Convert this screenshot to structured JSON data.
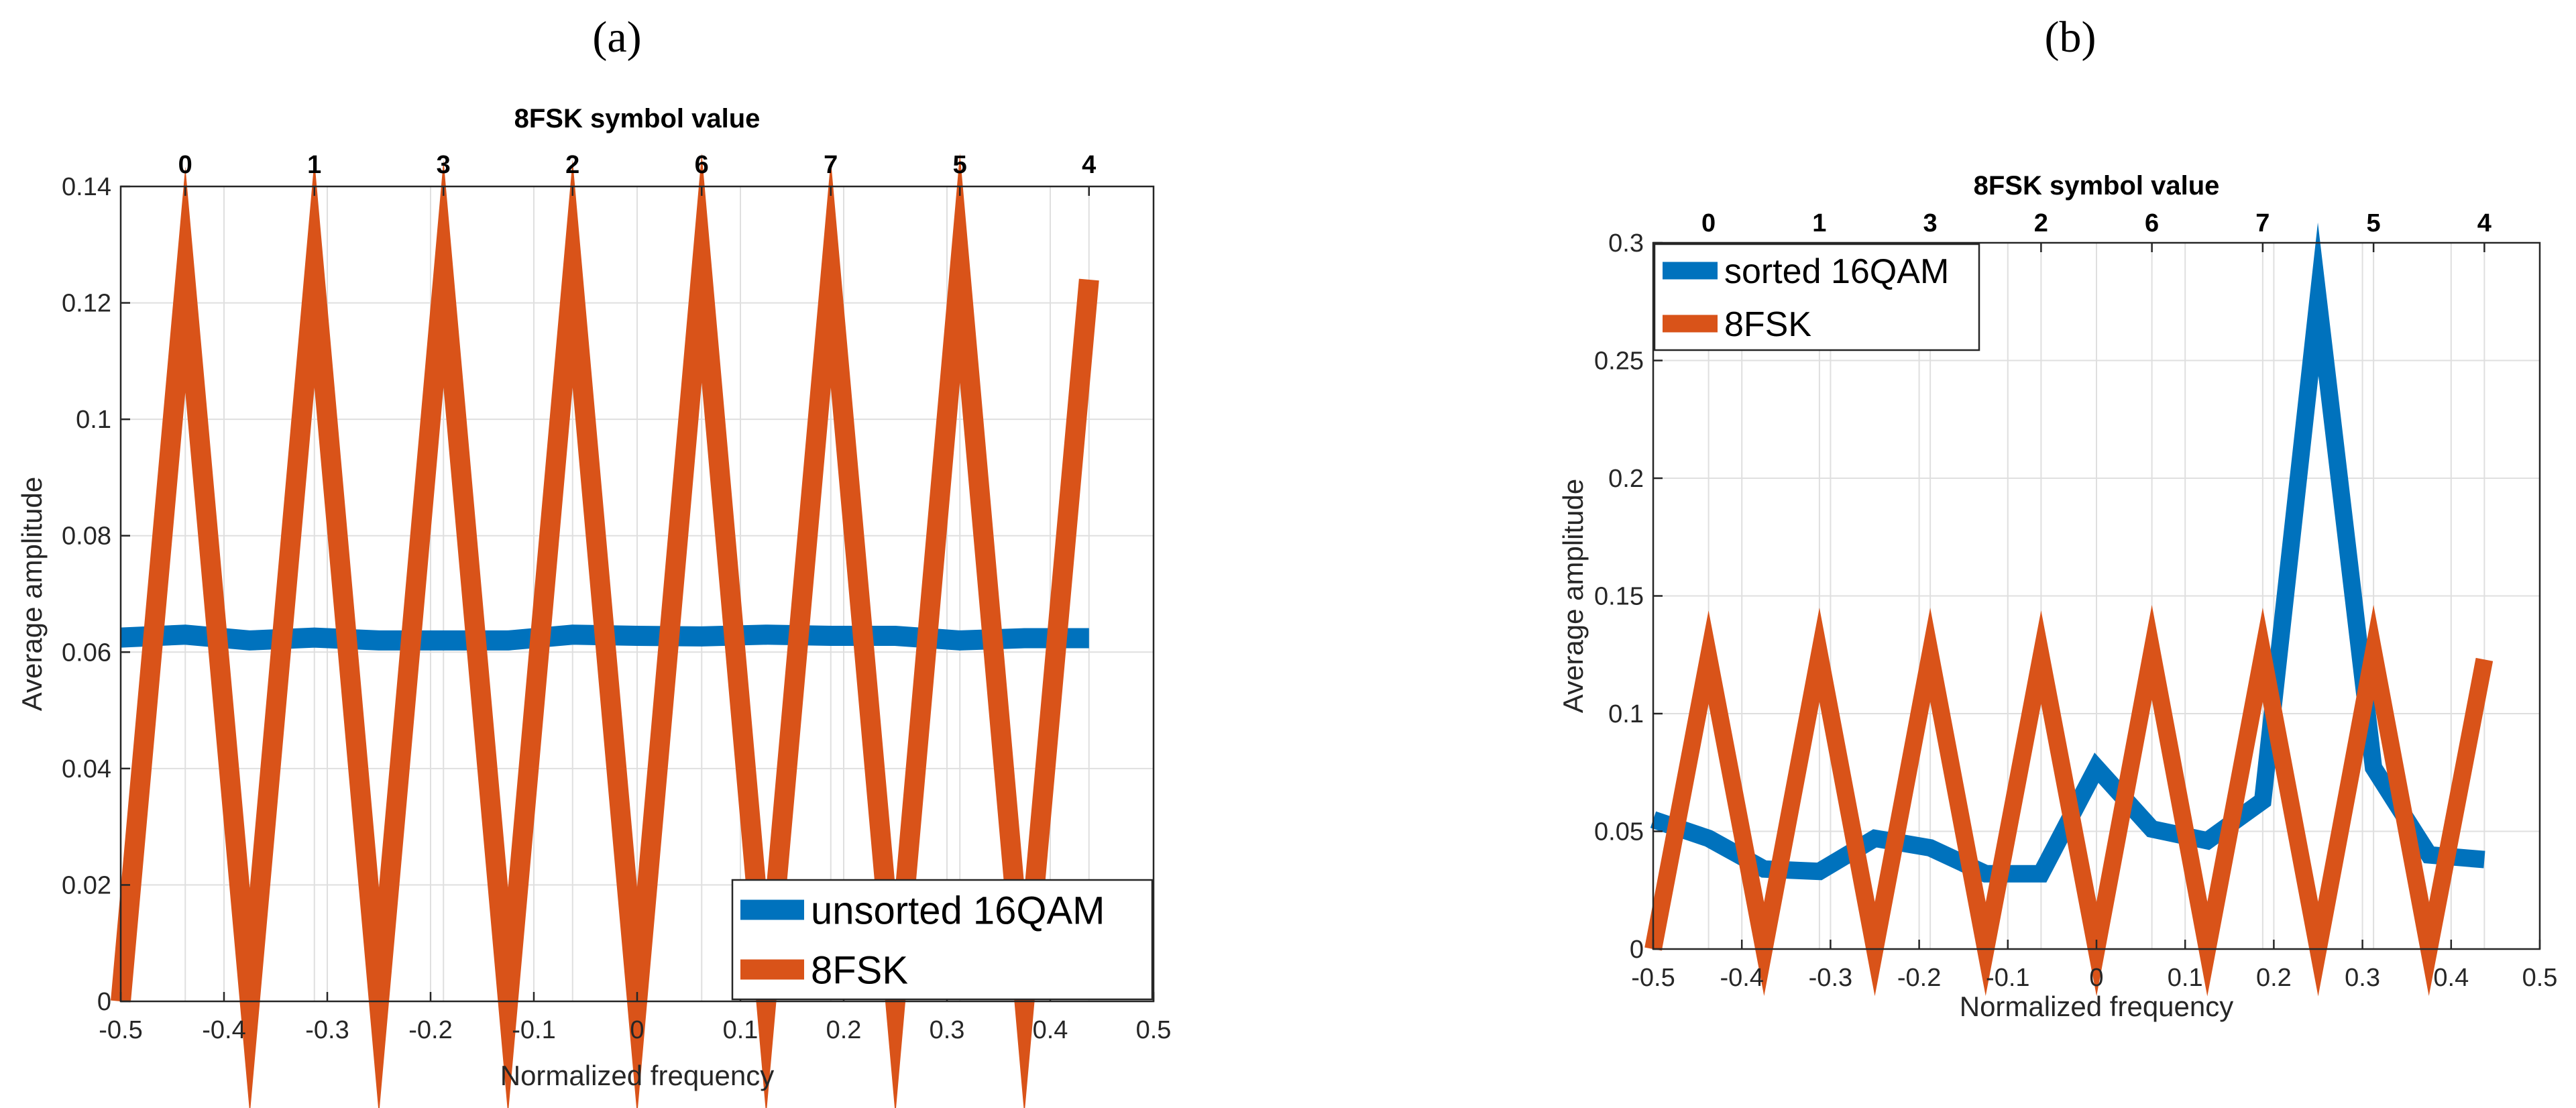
{
  "panel_labels": [
    "(a)",
    "(b)"
  ],
  "colors": {
    "series_blue": "#0072BD",
    "series_orange": "#D95319",
    "grid": "#dfdfdf",
    "axis": "#262626"
  },
  "chart_data": [
    {
      "type": "line",
      "panel": "(a)",
      "title": "",
      "xlabel": "Normalized frequency",
      "ylabel": "Average amplitude",
      "top_xlabel": "8FSK symbol value",
      "xlim": [
        -0.5,
        0.5
      ],
      "ylim": [
        0,
        0.14
      ],
      "xticks": [
        -0.5,
        -0.4,
        -0.3,
        -0.2,
        -0.1,
        0,
        0.1,
        0.2,
        0.3,
        0.4,
        0.5
      ],
      "xtick_labels": [
        "-0.5",
        "-0.4",
        "-0.3",
        "-0.2",
        "-0.1",
        "0",
        "0.1",
        "0.2",
        "0.3",
        "0.4",
        "0.5"
      ],
      "yticks": [
        0,
        0.02,
        0.04,
        0.06,
        0.08,
        0.1,
        0.12,
        0.14
      ],
      "ytick_labels": [
        "0",
        "0.02",
        "0.04",
        "0.06",
        "0.08",
        "0.1",
        "0.12",
        "0.14"
      ],
      "top_ticks": [
        -0.4375,
        -0.3125,
        -0.1875,
        -0.0625,
        0.0625,
        0.1875,
        0.3125,
        0.4375
      ],
      "top_tick_labels": [
        "0",
        "1",
        "3",
        "2",
        "6",
        "7",
        "5",
        "4"
      ],
      "grid": true,
      "legend_position": "bottom-right",
      "series": [
        {
          "name": "unsorted 16QAM",
          "color": "#0072BD",
          "x": [
            -0.5,
            -0.4375,
            -0.375,
            -0.3125,
            -0.25,
            -0.1875,
            -0.125,
            -0.0625,
            0,
            0.0625,
            0.125,
            0.1875,
            0.25,
            0.3125,
            0.375,
            0.4375
          ],
          "y": [
            0.0625,
            0.063,
            0.062,
            0.0625,
            0.062,
            0.062,
            0.062,
            0.063,
            0.0628,
            0.0627,
            0.063,
            0.0628,
            0.0628,
            0.062,
            0.0624,
            0.0624
          ]
        },
        {
          "name": "8FSK",
          "color": "#D95319",
          "x": [
            -0.5,
            -0.4375,
            -0.375,
            -0.3125,
            -0.25,
            -0.1875,
            -0.125,
            -0.0625,
            0,
            0.0625,
            0.125,
            0.1875,
            0.25,
            0.3125,
            0.375,
            0.4375
          ],
          "y": [
            0,
            0.124,
            0,
            0.125,
            0,
            0.125,
            0,
            0.125,
            0,
            0.126,
            0,
            0.125,
            0,
            0.126,
            0,
            0.124
          ]
        }
      ]
    },
    {
      "type": "line",
      "panel": "(b)",
      "title": "",
      "xlabel": "Normalized frequency",
      "ylabel": "Average amplitude",
      "top_xlabel": "8FSK symbol value",
      "xlim": [
        -0.5,
        0.5
      ],
      "ylim": [
        0,
        0.3
      ],
      "xticks": [
        -0.5,
        -0.4,
        -0.3,
        -0.2,
        -0.1,
        0,
        0.1,
        0.2,
        0.3,
        0.4,
        0.5
      ],
      "xtick_labels": [
        "-0.5",
        "-0.4",
        "-0.3",
        "-0.2",
        "-0.1",
        "0",
        "0.1",
        "0.2",
        "0.3",
        "0.4",
        "0.5"
      ],
      "yticks": [
        0,
        0.05,
        0.1,
        0.15,
        0.2,
        0.25,
        0.3
      ],
      "ytick_labels": [
        "0",
        "0.05",
        "0.1",
        "0.15",
        "0.2",
        "0.25",
        "0.3"
      ],
      "top_ticks": [
        -0.4375,
        -0.3125,
        -0.1875,
        -0.0625,
        0.0625,
        0.1875,
        0.3125,
        0.4375
      ],
      "top_tick_labels": [
        "0",
        "1",
        "3",
        "2",
        "6",
        "7",
        "5",
        "4"
      ],
      "grid": true,
      "legend_position": "top-left",
      "series": [
        {
          "name": "sorted 16QAM",
          "color": "#0072BD",
          "x": [
            -0.5,
            -0.4375,
            -0.375,
            -0.3125,
            -0.25,
            -0.1875,
            -0.125,
            -0.0625,
            0,
            0.0625,
            0.125,
            0.1875,
            0.25,
            0.3125,
            0.375,
            0.4375
          ],
          "y": [
            0.055,
            0.047,
            0.034,
            0.033,
            0.047,
            0.043,
            0.032,
            0.032,
            0.077,
            0.051,
            0.046,
            0.063,
            0.276,
            0.077,
            0.04,
            0.038
          ]
        },
        {
          "name": "8FSK",
          "color": "#D95319",
          "x": [
            -0.5,
            -0.4375,
            -0.375,
            -0.3125,
            -0.25,
            -0.1875,
            -0.125,
            -0.0625,
            0,
            0.0625,
            0.125,
            0.1875,
            0.25,
            0.3125,
            0.375,
            0.4375
          ],
          "y": [
            0,
            0.124,
            0,
            0.125,
            0,
            0.125,
            0,
            0.124,
            0,
            0.126,
            0,
            0.125,
            0,
            0.126,
            0,
            0.123
          ]
        }
      ]
    }
  ]
}
